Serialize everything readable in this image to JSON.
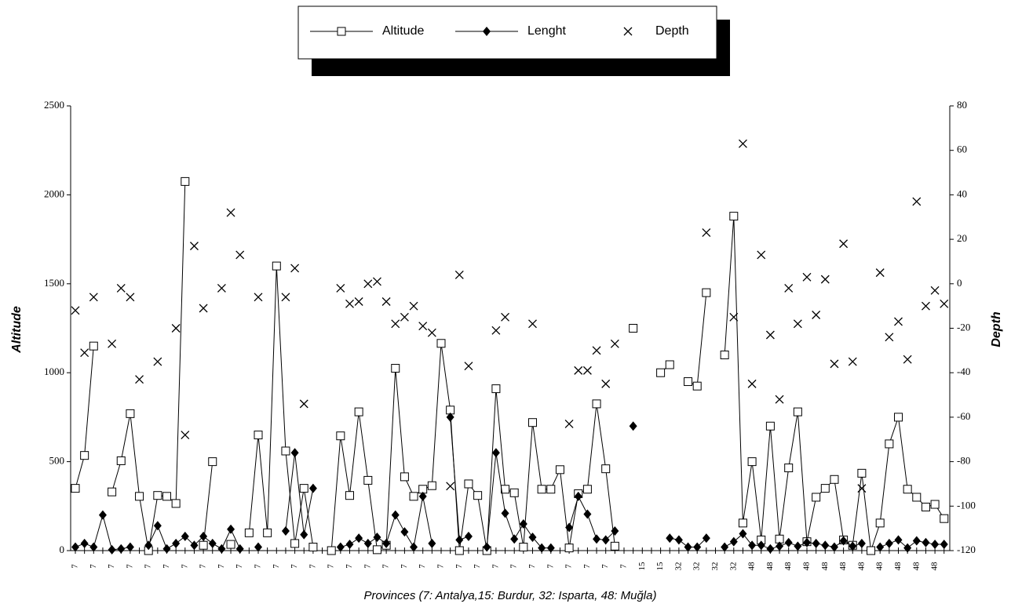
{
  "chart_data": {
    "type": "line",
    "x_label": "Provinces (7: Antalya,15: Burdur, 32: Isparta, 48: Muğla)",
    "y_label": "Altitude",
    "y2_label": "Depth",
    "categories": [
      "7",
      null,
      "7",
      null,
      "7",
      null,
      "7",
      null,
      "7",
      null,
      "7",
      null,
      "7",
      null,
      "7",
      null,
      "7",
      null,
      "7",
      null,
      "7",
      null,
      "7",
      null,
      "7",
      null,
      "7",
      null,
      "7",
      null,
      "7",
      null,
      "7",
      null,
      "7",
      null,
      "7",
      null,
      "7",
      null,
      "7",
      null,
      "7",
      null,
      "7",
      null,
      "7",
      null,
      "7",
      null,
      "7",
      null,
      "7",
      null,
      "7",
      null,
      "7",
      null,
      "7",
      null,
      "7",
      null,
      "15",
      null,
      "15",
      null,
      "32",
      null,
      "32",
      null,
      "32",
      null,
      "32",
      null,
      "48",
      null,
      "48",
      null,
      "48",
      null,
      "48",
      null,
      "48",
      null,
      "48",
      null,
      "48",
      null,
      "48",
      null,
      "48",
      null,
      "48",
      null,
      "48",
      null
    ],
    "ylim": [
      0,
      2500
    ],
    "yticks": [
      0,
      500,
      1000,
      1500,
      2000,
      2500
    ],
    "y2lim": [
      -120,
      80
    ],
    "y2ticks": [
      -120,
      -100,
      -80,
      -60,
      -40,
      -20,
      0,
      20,
      40,
      60,
      80
    ],
    "legend": "top",
    "series": [
      {
        "name": "Altitude",
        "color": "#000000",
        "marker": "square",
        "values": [
          350,
          535,
          1150,
          null,
          330,
          505,
          770,
          305,
          0,
          310,
          305,
          265,
          2075,
          null,
          30,
          500,
          null,
          35,
          null,
          100,
          650,
          100,
          1600,
          560,
          40,
          350,
          20,
          null,
          0,
          645,
          310,
          780,
          395,
          5,
          30,
          1025,
          415,
          305,
          345,
          365,
          1165,
          790,
          0,
          375,
          310,
          0,
          910,
          345,
          325,
          20,
          720,
          345,
          345,
          455,
          15,
          320,
          345,
          825,
          460,
          25,
          null,
          1250,
          null,
          null,
          1000,
          1045,
          null,
          950,
          925,
          1450,
          null,
          1100,
          1880,
          155,
          500,
          60,
          700,
          65,
          465,
          780,
          50,
          300,
          350,
          400,
          60,
          30,
          435,
          0,
          155,
          600,
          750,
          345,
          300,
          245,
          260,
          180
        ]
      },
      {
        "name": "Lenght",
        "color": "#000000",
        "marker": "diamond",
        "values": [
          20,
          40,
          20,
          200,
          5,
          10,
          20,
          null,
          30,
          140,
          10,
          40,
          80,
          30,
          80,
          40,
          10,
          120,
          10,
          null,
          20,
          null,
          null,
          110,
          550,
          90,
          350,
          null,
          null,
          20,
          35,
          70,
          40,
          75,
          40,
          200,
          105,
          20,
          305,
          40,
          null,
          750,
          60,
          80,
          null,
          20,
          550,
          210,
          65,
          150,
          75,
          15,
          15,
          null,
          130,
          305,
          205,
          65,
          60,
          110,
          null,
          700,
          null,
          null,
          null,
          70,
          60,
          20,
          20,
          70,
          null,
          20,
          50,
          95,
          30,
          30,
          10,
          25,
          45,
          25,
          45,
          40,
          30,
          20,
          55,
          25,
          40,
          null,
          20,
          40,
          60,
          15,
          55,
          45,
          35,
          35
        ]
      },
      {
        "name": "Depth",
        "color": "#000000",
        "marker": "cross",
        "line": false,
        "axis": "y2",
        "values": [
          -12,
          -31,
          -6,
          null,
          -27,
          -2,
          -6,
          -43,
          null,
          -35,
          null,
          -20,
          -68,
          17,
          -11,
          null,
          -2,
          32,
          13,
          null,
          -6,
          null,
          null,
          -6,
          7,
          -54,
          null,
          null,
          null,
          -2,
          -9,
          -8,
          0,
          1,
          -8,
          -18,
          -15,
          -10,
          -19,
          -22,
          null,
          -91,
          4,
          -37,
          null,
          null,
          -21,
          -15,
          null,
          null,
          -18,
          null,
          null,
          null,
          -63,
          -39,
          -39,
          -30,
          -45,
          -27,
          null,
          null,
          null,
          null,
          null,
          null,
          null,
          null,
          null,
          23,
          null,
          null,
          -15,
          63,
          -45,
          13,
          -23,
          -52,
          -2,
          -18,
          3,
          -14,
          2,
          -36,
          18,
          -35,
          -92,
          null,
          5,
          -24,
          -17,
          -34,
          37,
          -10,
          -3,
          -9
        ]
      }
    ]
  }
}
